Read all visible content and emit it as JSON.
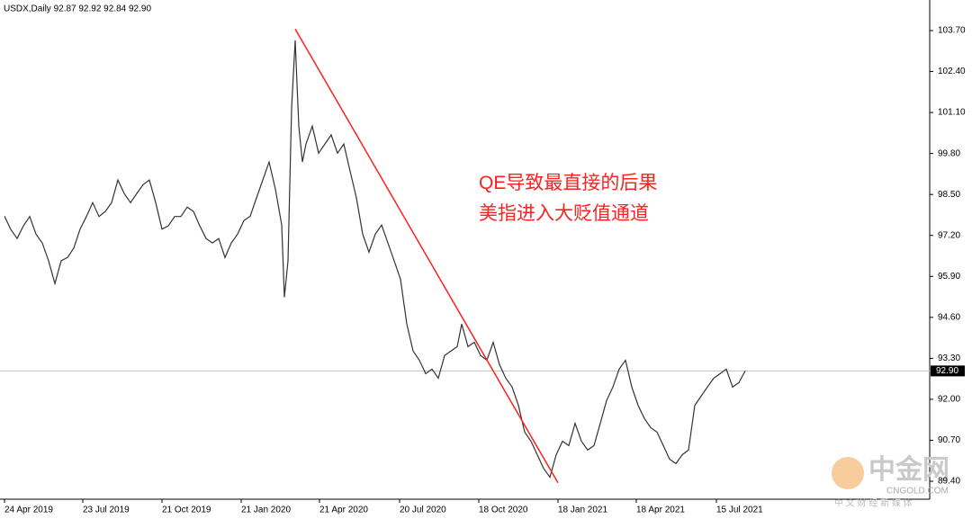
{
  "chart_data": {
    "type": "line",
    "header": "USDX,Daily  92.87 92.92 92.84 92.90",
    "annotation": [
      "QE导致最直接的后果",
      "美指进入大贬值通道"
    ],
    "watermark": [
      "中金网",
      "CNGOLD.COM",
      "中 文 财 经 新 媒 体"
    ],
    "xlim": [
      0,
      1030
    ],
    "xticks": [
      {
        "value": 5,
        "label": "24 Apr 2019"
      },
      {
        "value": 92,
        "label": "23 Jul 2019"
      },
      {
        "value": 180,
        "label": "21 Oct 2019"
      },
      {
        "value": 268,
        "label": "21 Jan 2020"
      },
      {
        "value": 355,
        "label": "21 Apr 2020"
      },
      {
        "value": 444,
        "label": "20 Jul 2020"
      },
      {
        "value": 532,
        "label": "18 Oct 2020"
      },
      {
        "value": 620,
        "label": "18 Jan 2021"
      },
      {
        "value": 707,
        "label": "18 Apr 2021"
      },
      {
        "value": 796,
        "label": "15 Jul 2021"
      }
    ],
    "ylim": [
      88.83,
      104.67
    ],
    "yticks": [
      {
        "value": 103.7,
        "label": "103.70"
      },
      {
        "value": 102.4,
        "label": "102.40"
      },
      {
        "value": 101.1,
        "label": "101.10"
      },
      {
        "value": 99.8,
        "label": "99.80"
      },
      {
        "value": 98.5,
        "label": "98.50"
      },
      {
        "value": 97.2,
        "label": "97.20"
      },
      {
        "value": 95.9,
        "label": "95.90"
      },
      {
        "value": 94.6,
        "label": "94.60"
      },
      {
        "value": 93.3,
        "label": "93.30"
      },
      {
        "value": 92,
        "label": "92.00"
      },
      {
        "value": 90.7,
        "label": "90.70"
      },
      {
        "value": 89.4,
        "label": "89.40"
      }
    ],
    "current_price": {
      "value": 92.9,
      "label": "92.90"
    },
    "grid": false,
    "series": [
      {
        "color": "#333333",
        "x": [
          5,
          12,
          19,
          26,
          33,
          40,
          47,
          54,
          61,
          68,
          75,
          82,
          89,
          96,
          103,
          110,
          117,
          124,
          131,
          138,
          145,
          152,
          159,
          166,
          173,
          180,
          187,
          194,
          201,
          208,
          215,
          222,
          229,
          236,
          243,
          250,
          257,
          264,
          271,
          278,
          285,
          292,
          299,
          306,
          313,
          316,
          320,
          324,
          328,
          332,
          336,
          340,
          347,
          354,
          361,
          368,
          375,
          382,
          389,
          396,
          403,
          410,
          417,
          424,
          431,
          438,
          445,
          452,
          459,
          466,
          473,
          480,
          487,
          494,
          501,
          508,
          513,
          520,
          527,
          534,
          541,
          548,
          555,
          562,
          569,
          576,
          583,
          590,
          597,
          604,
          611,
          618,
          625,
          632,
          639,
          646,
          653,
          660,
          667,
          674,
          681,
          688,
          695,
          702,
          709,
          716,
          723,
          730,
          737,
          744,
          751,
          758,
          765,
          772,
          779,
          786,
          793,
          800,
          807,
          814,
          821,
          828
        ],
        "values": [
          97.81,
          97.39,
          97.1,
          97.5,
          97.8,
          97.24,
          96.96,
          96.39,
          95.67,
          96.4,
          96.5,
          96.8,
          97.4,
          97.8,
          98.24,
          97.8,
          97.96,
          98.24,
          98.96,
          98.53,
          98.24,
          98.53,
          98.81,
          98.96,
          98.24,
          97.4,
          97.5,
          97.8,
          97.8,
          98.1,
          97.96,
          97.5,
          97.1,
          96.96,
          97.1,
          96.5,
          96.96,
          97.24,
          97.67,
          97.81,
          98.39,
          98.96,
          99.53,
          98.67,
          97.53,
          95.24,
          96.39,
          101.24,
          103.39,
          100.67,
          99.53,
          100.1,
          100.67,
          99.81,
          100.1,
          100.39,
          99.81,
          100.1,
          99.24,
          98.39,
          97.24,
          96.67,
          97.24,
          97.53,
          96.96,
          96.39,
          95.81,
          94.39,
          93.53,
          93.24,
          92.81,
          92.96,
          92.67,
          93.39,
          93.53,
          93.67,
          94.39,
          93.67,
          93.81,
          93.39,
          93.24,
          93.81,
          93.1,
          92.67,
          92.39,
          91.81,
          90.96,
          90.67,
          90.24,
          89.81,
          89.53,
          90.24,
          90.67,
          90.53,
          91.24,
          90.67,
          90.39,
          90.53,
          91.24,
          91.96,
          92.39,
          92.96,
          93.24,
          92.39,
          91.81,
          91.39,
          91.1,
          90.96,
          90.53,
          90.1,
          89.96,
          90.24,
          90.39,
          91.81,
          92.1,
          92.39,
          92.67,
          92.81,
          92.96,
          92.39,
          92.53,
          92.9
        ]
      }
    ],
    "trendline": {
      "color": "#ff2020",
      "x": [
        328,
        620
      ],
      "values": [
        103.75,
        89.35
      ]
    }
  }
}
